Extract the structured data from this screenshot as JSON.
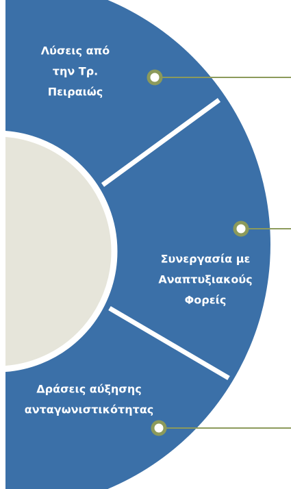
{
  "segments": [
    {
      "lines": [
        "Λύσεις από",
        "την Τρ.",
        "Πειραιώς"
      ]
    },
    {
      "lines": [
        "Συνεργασία με",
        "Αναπτυξιακούς",
        "Φορείς"
      ]
    },
    {
      "lines": [
        "Δράσεις αύξησης",
        "ανταγωνιστικότητας"
      ]
    }
  ]
}
